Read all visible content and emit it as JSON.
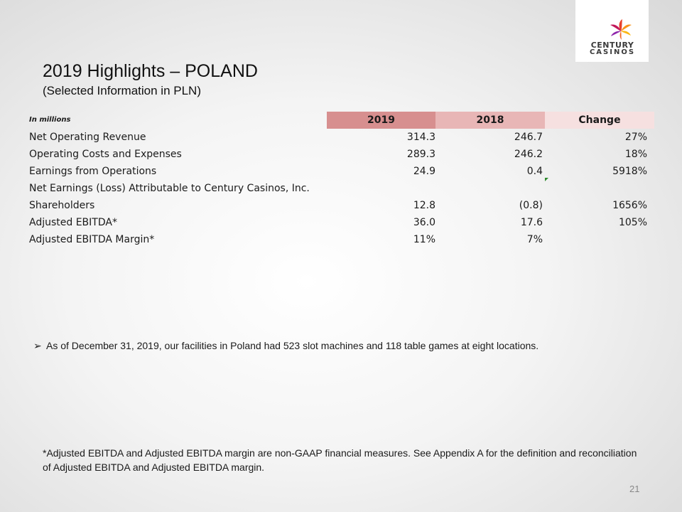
{
  "logo": {
    "line1": "CENTURY",
    "line2": "CASINOS"
  },
  "title": "2019 Highlights – POLAND",
  "subtitle": "(Selected Information in PLN)",
  "table": {
    "unit_label": "In millions",
    "headers": [
      "2019",
      "2018",
      "Change"
    ],
    "header_colors": [
      "#d78f8f",
      "#e8b6b6",
      "#f6e0e0"
    ],
    "rows": [
      {
        "label": "Net Operating Revenue",
        "v2019": "314.3",
        "v2018": "246.7",
        "change": "27%"
      },
      {
        "label": "Operating Costs and Expenses",
        "v2019": "289.3",
        "v2018": "246.2",
        "change": "18%"
      },
      {
        "label": "Earnings from Operations",
        "v2019": "24.9",
        "v2018": "0.4",
        "change": "5918%"
      },
      {
        "label": "Net Earnings (Loss) Attributable to Century Casinos, Inc.",
        "v2019": "",
        "v2018": "",
        "change": ""
      },
      {
        "label": "Shareholders",
        "v2019": "12.8",
        "v2018": "(0.8)",
        "change": "1656%"
      },
      {
        "label": "Adjusted EBITDA*",
        "v2019": "36.0",
        "v2018": "17.6",
        "change": "105%"
      },
      {
        "label": "Adjusted EBITDA Margin*",
        "v2019": "11%",
        "v2018": "7%",
        "change": ""
      }
    ]
  },
  "bullet": {
    "icon": "arrow-bullet-icon",
    "text": "As of December 31, 2019, our facilities in Poland had 523 slot machines and 118 table games at eight locations."
  },
  "footnote": "*Adjusted EBITDA and Adjusted EBITDA margin are non-GAAP financial measures. See Appendix A for the definition and reconciliation of Adjusted EBITDA and Adjusted EBITDA margin.",
  "page_number": "21"
}
